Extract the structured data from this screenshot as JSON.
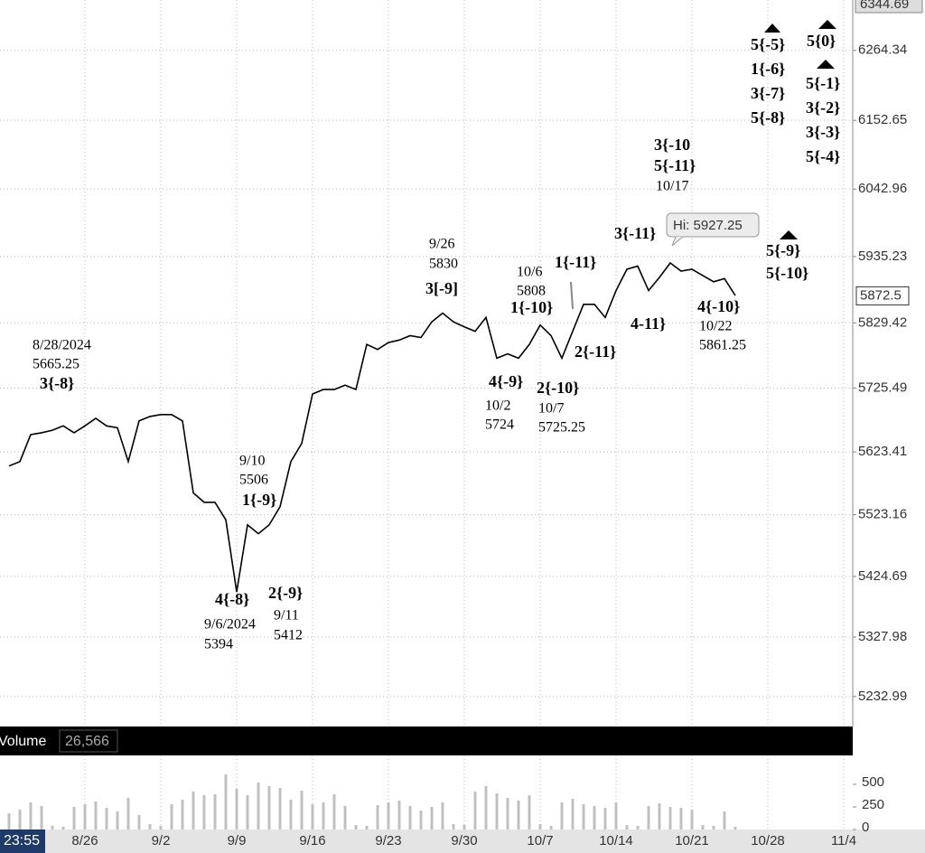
{
  "chart_data": [
    {
      "type": "line",
      "color": "#000000",
      "categories": [
        null,
        null,
        null,
        null,
        null,
        null,
        null,
        "8/26",
        null,
        null,
        null,
        null,
        null,
        null,
        "9/2",
        null,
        null,
        null,
        null,
        null,
        null,
        "9/9",
        null,
        null,
        null,
        null,
        null,
        null,
        "9/16",
        null,
        null,
        null,
        null,
        null,
        null,
        "9/23",
        null,
        null,
        null,
        null,
        null,
        null,
        "9/30",
        null,
        null,
        null,
        null,
        null,
        null,
        "10/7",
        null,
        null,
        null,
        null,
        null,
        null,
        "10/14",
        null,
        null,
        null,
        null,
        null,
        null,
        "10/21",
        null,
        null,
        null,
        null,
        null,
        null,
        "10/28",
        null,
        null,
        null,
        null,
        null,
        null,
        "11/4"
      ],
      "values": [
        5601,
        5608,
        5651,
        5654,
        5658,
        5665,
        5654,
        5665,
        5677,
        5665,
        5662,
        5608,
        5673,
        5680,
        5683,
        5683,
        5673,
        5558,
        5543,
        5543,
        5515,
        5400,
        5507,
        5493,
        5507,
        5536,
        5608,
        5637,
        5716,
        5723,
        5723,
        5730,
        5723,
        5795,
        5787,
        5798,
        5802,
        5809,
        5806,
        5831,
        5845,
        5831,
        5823,
        5816,
        5838,
        5773,
        5780,
        5773,
        5795,
        5826,
        5809,
        5773,
        5816,
        5859,
        5859,
        5838,
        5881,
        5915,
        5920,
        5881,
        5902,
        5925,
        5912,
        5915,
        5905,
        5895,
        5900,
        5873,
        null,
        null,
        null,
        null,
        null,
        null,
        null,
        null,
        null,
        null
      ],
      "ylim": [
        5191,
        6344.69
      ],
      "yticks": [
        5232.99,
        5327.98,
        5424.69,
        5523.16,
        5623.41,
        5725.49,
        5829.42,
        5935.23,
        6042.96,
        6152.65,
        6264.34
      ],
      "grid": true,
      "last_price": 5872.5,
      "hi": {
        "value": 5927.25,
        "label": "Hi: 5927.25"
      },
      "annotations": [
        {
          "lines": [
            "8/28/2024",
            "5665.25",
            "3{-8}"
          ]
        },
        {
          "lines": [
            "9/10",
            "5506",
            "1{-9}"
          ]
        },
        {
          "lines": [
            "4{-8}",
            "9/6/2024",
            "5394"
          ]
        },
        {
          "lines": [
            "2{-9}",
            "9/11",
            "5412"
          ]
        },
        {
          "lines": [
            "9/26",
            "5830",
            "3[-9]"
          ]
        },
        {
          "lines": [
            "10/6",
            "5808",
            "1{-10}"
          ]
        },
        {
          "lines": [
            "1{-11}"
          ]
        },
        {
          "lines": [
            "4{-9}",
            "10/2",
            "5724"
          ]
        },
        {
          "lines": [
            "2{-10}",
            "10/7",
            "5725.25"
          ]
        },
        {
          "lines": [
            "2{-11}"
          ]
        },
        {
          "lines": [
            "3{-11}"
          ]
        },
        {
          "lines": [
            "4-11}"
          ]
        },
        {
          "lines": [
            "3{-10",
            "5{-11}",
            "10/17"
          ]
        },
        {
          "lines": [
            "4{-10}",
            "10/22",
            "5861.25"
          ]
        },
        {
          "lines": [
            "5{-9}",
            "5{-10}"
          ]
        },
        {
          "lines": [
            "5{-5}",
            "1{-6}",
            "3{-7}",
            "5{-8}"
          ]
        },
        {
          "lines": [
            "5{0}"
          ]
        },
        {
          "lines": [
            "5{-1}",
            "3{-2}",
            "3{-3}",
            "5{-4}"
          ]
        }
      ]
    },
    {
      "type": "bar",
      "title": "Volume",
      "color": "#c0c0c0",
      "current": {
        "value": 26566,
        "label": "26,566"
      },
      "values": [
        180,
        220,
        300,
        260,
        40,
        30,
        250,
        280,
        310,
        240,
        200,
        350,
        160,
        60,
        40,
        280,
        330,
        420,
        380,
        390,
        610,
        450,
        380,
        520,
        480,
        460,
        330,
        430,
        280,
        300,
        390,
        260,
        50,
        40,
        270,
        300,
        320,
        260,
        210,
        250,
        300,
        60,
        50,
        420,
        480,
        400,
        350,
        320,
        380,
        60,
        40,
        300,
        340,
        280,
        260,
        240,
        300,
        50,
        40,
        260,
        290,
        250,
        240,
        220,
        50,
        40,
        200,
        30
      ],
      "ylim": [
        0,
        800
      ],
      "yticks": [
        0,
        250,
        500
      ]
    }
  ],
  "footer": {
    "time": "23:55"
  }
}
